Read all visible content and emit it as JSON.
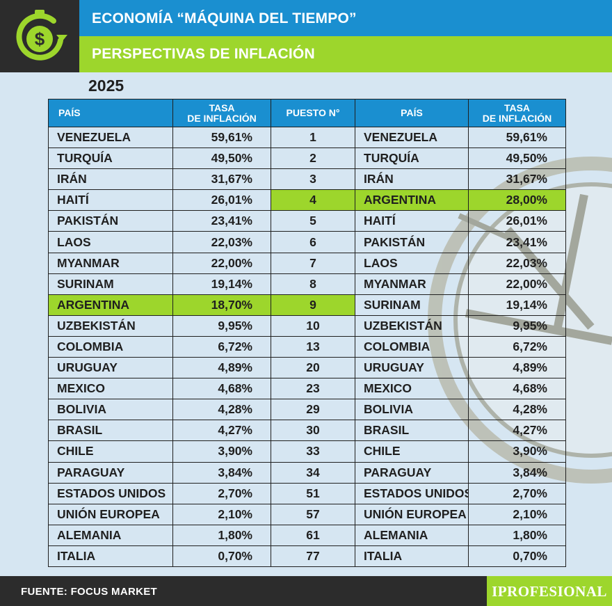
{
  "header": {
    "title": "ECONOMÍA “MÁQUINA DEL TIEMPO”",
    "subtitle": "PERSPECTIVAS DE INFLACIÓN"
  },
  "year": "2025",
  "table": {
    "headers": {
      "pais_left": "PAÍS",
      "tasa_left_line1": "TASA",
      "tasa_left_line2": "DE INFLACIÓN",
      "puesto": "PUESTO N°",
      "pais_right": "PAÍS",
      "tasa_right_line1": "TASA",
      "tasa_right_line2": "DE INFLACIÓN"
    },
    "rows": [
      {
        "left_country": "VENEZUELA",
        "left_rate": "59,61%",
        "rank": "1",
        "right_country": "VENEZUELA",
        "right_rate": "59,61%"
      },
      {
        "left_country": "TURQUÍA",
        "left_rate": "49,50%",
        "rank": "2",
        "right_country": "TURQUÍA",
        "right_rate": "49,50%"
      },
      {
        "left_country": "IRÁN",
        "left_rate": "31,67%",
        "rank": "3",
        "right_country": "IRÁN",
        "right_rate": "31,67%"
      },
      {
        "left_country": "HAITÍ",
        "left_rate": "26,01%",
        "rank": "4",
        "right_country": "ARGENTINA",
        "right_rate": "28,00%"
      },
      {
        "left_country": "PAKISTÁN",
        "left_rate": "23,41%",
        "rank": "5",
        "right_country": "HAITÍ",
        "right_rate": "26,01%"
      },
      {
        "left_country": "LAOS",
        "left_rate": "22,03%",
        "rank": "6",
        "right_country": "PAKISTÁN",
        "right_rate": "23,41%"
      },
      {
        "left_country": "MYANMAR",
        "left_rate": "22,00%",
        "rank": "7",
        "right_country": "LAOS",
        "right_rate": "22,03%"
      },
      {
        "left_country": "SURINAM",
        "left_rate": "19,14%",
        "rank": "8",
        "right_country": "MYANMAR",
        "right_rate": "22,00%"
      },
      {
        "left_country": "ARGENTINA",
        "left_rate": "18,70%",
        "rank": "9",
        "right_country": "SURINAM",
        "right_rate": "19,14%"
      },
      {
        "left_country": "UZBEKISTÁN",
        "left_rate": "9,95%",
        "rank": "10",
        "right_country": "UZBEKISTÁN",
        "right_rate": "9,95%"
      },
      {
        "left_country": "COLOMBIA",
        "left_rate": "6,72%",
        "rank": "13",
        "right_country": "COLOMBIA",
        "right_rate": "6,72%"
      },
      {
        "left_country": "URUGUAY",
        "left_rate": "4,89%",
        "rank": "20",
        "right_country": "URUGUAY",
        "right_rate": "4,89%"
      },
      {
        "left_country": "MEXICO",
        "left_rate": "4,68%",
        "rank": "23",
        "right_country": "MEXICO",
        "right_rate": "4,68%"
      },
      {
        "left_country": "BOLIVIA",
        "left_rate": "4,28%",
        "rank": "29",
        "right_country": "BOLIVIA",
        "right_rate": "4,28%"
      },
      {
        "left_country": "BRASIL",
        "left_rate": "4,27%",
        "rank": "30",
        "right_country": "BRASIL",
        "right_rate": "4,27%"
      },
      {
        "left_country": "CHILE",
        "left_rate": "3,90%",
        "rank": "33",
        "right_country": "CHILE",
        "right_rate": "3,90%"
      },
      {
        "left_country": "PARAGUAY",
        "left_rate": "3,84%",
        "rank": "34",
        "right_country": "PARAGUAY",
        "right_rate": "3,84%"
      },
      {
        "left_country": "ESTADOS UNIDOS",
        "left_rate": "2,70%",
        "rank": "51",
        "right_country": "ESTADOS UNIDOS",
        "right_rate": "2,70%"
      },
      {
        "left_country": "UNIÓN EUROPEA",
        "left_rate": "2,10%",
        "rank": "57",
        "right_country": "UNIÓN EUROPEA",
        "right_rate": "2,10%"
      },
      {
        "left_country": "ALEMANIA",
        "left_rate": "1,80%",
        "rank": "61",
        "right_country": "ALEMANIA",
        "right_rate": "1,80%"
      },
      {
        "left_country": "ITALIA",
        "left_rate": "0,70%",
        "rank": "77",
        "right_country": "ITALIA",
        "right_rate": "0,70%"
      }
    ],
    "highlight_left_row": 8,
    "highlight_right_row": 3
  },
  "footer": {
    "source": "FUENTE: FOCUS MARKET",
    "brand": "IPROFESIONAL"
  },
  "colors": {
    "blue": "#1a8fd0",
    "green": "#9dd62c",
    "dark": "#2c2c2c",
    "background": "#d6e6f2"
  },
  "icons": {
    "logo": "stopwatch-dollar-icon",
    "watermark": "clock-watermark"
  }
}
